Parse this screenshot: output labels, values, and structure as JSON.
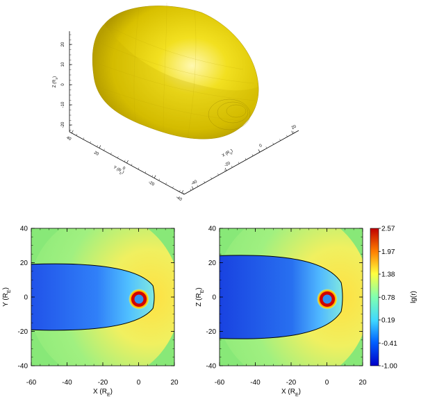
{
  "chart_data": [
    {
      "type": "surface3d",
      "panel": "top",
      "description_labels": {
        "z_label": "Z (R",
        "z_sub": "E",
        "y_label": "Y (R",
        "y_sub": "E",
        "x_label": "X (R",
        "x_sub": "E"
      },
      "z_ticks": [
        "20",
        "10",
        "0",
        "-10",
        "-20"
      ],
      "y_ticks": [
        "40",
        "20",
        "0",
        "-20",
        "-40"
      ],
      "x_ticks": [
        "-40",
        "-20",
        "0",
        "20"
      ],
      "surface_color": "#e8d400"
    },
    {
      "type": "heatmap",
      "panel": "bottom-left",
      "xlabel": "X (R",
      "xlabel_sub": "E",
      "ylabel": "Y (R",
      "ylabel_sub": "E",
      "xlim": [
        -60,
        20
      ],
      "ylim": [
        -40,
        40
      ],
      "x_ticks": [
        "-60",
        "-40",
        "-20",
        "0",
        "20"
      ],
      "y_ticks": [
        "40",
        "20",
        "0",
        "-20",
        "-40"
      ],
      "boundary_half_width_far": 19,
      "nose_x": 9
    },
    {
      "type": "heatmap",
      "panel": "bottom-right",
      "xlabel": "X (R",
      "xlabel_sub": "E",
      "ylabel": "Z (R",
      "ylabel_sub": "E",
      "xlim": [
        -60,
        20
      ],
      "ylim": [
        -40,
        40
      ],
      "x_ticks": [
        "-60",
        "-40",
        "-20",
        "0",
        "20"
      ],
      "y_ticks": [
        "40",
        "20",
        "0",
        "-20",
        "-40"
      ],
      "boundary_half_width_far": 24,
      "nose_x": 9
    }
  ],
  "colorbar": {
    "label": "lg(r)",
    "ticks": [
      "2.57",
      "1.97",
      "1.38",
      "0.78",
      "0.19",
      "-0.41",
      "-1.00"
    ],
    "values": [
      2.57,
      1.97,
      1.38,
      0.78,
      0.19,
      -0.41,
      -1.0
    ],
    "colors": [
      "#0000c8",
      "#0060ff",
      "#40d8ff",
      "#80ffb0",
      "#ffff40",
      "#ff8000",
      "#c00000"
    ]
  }
}
